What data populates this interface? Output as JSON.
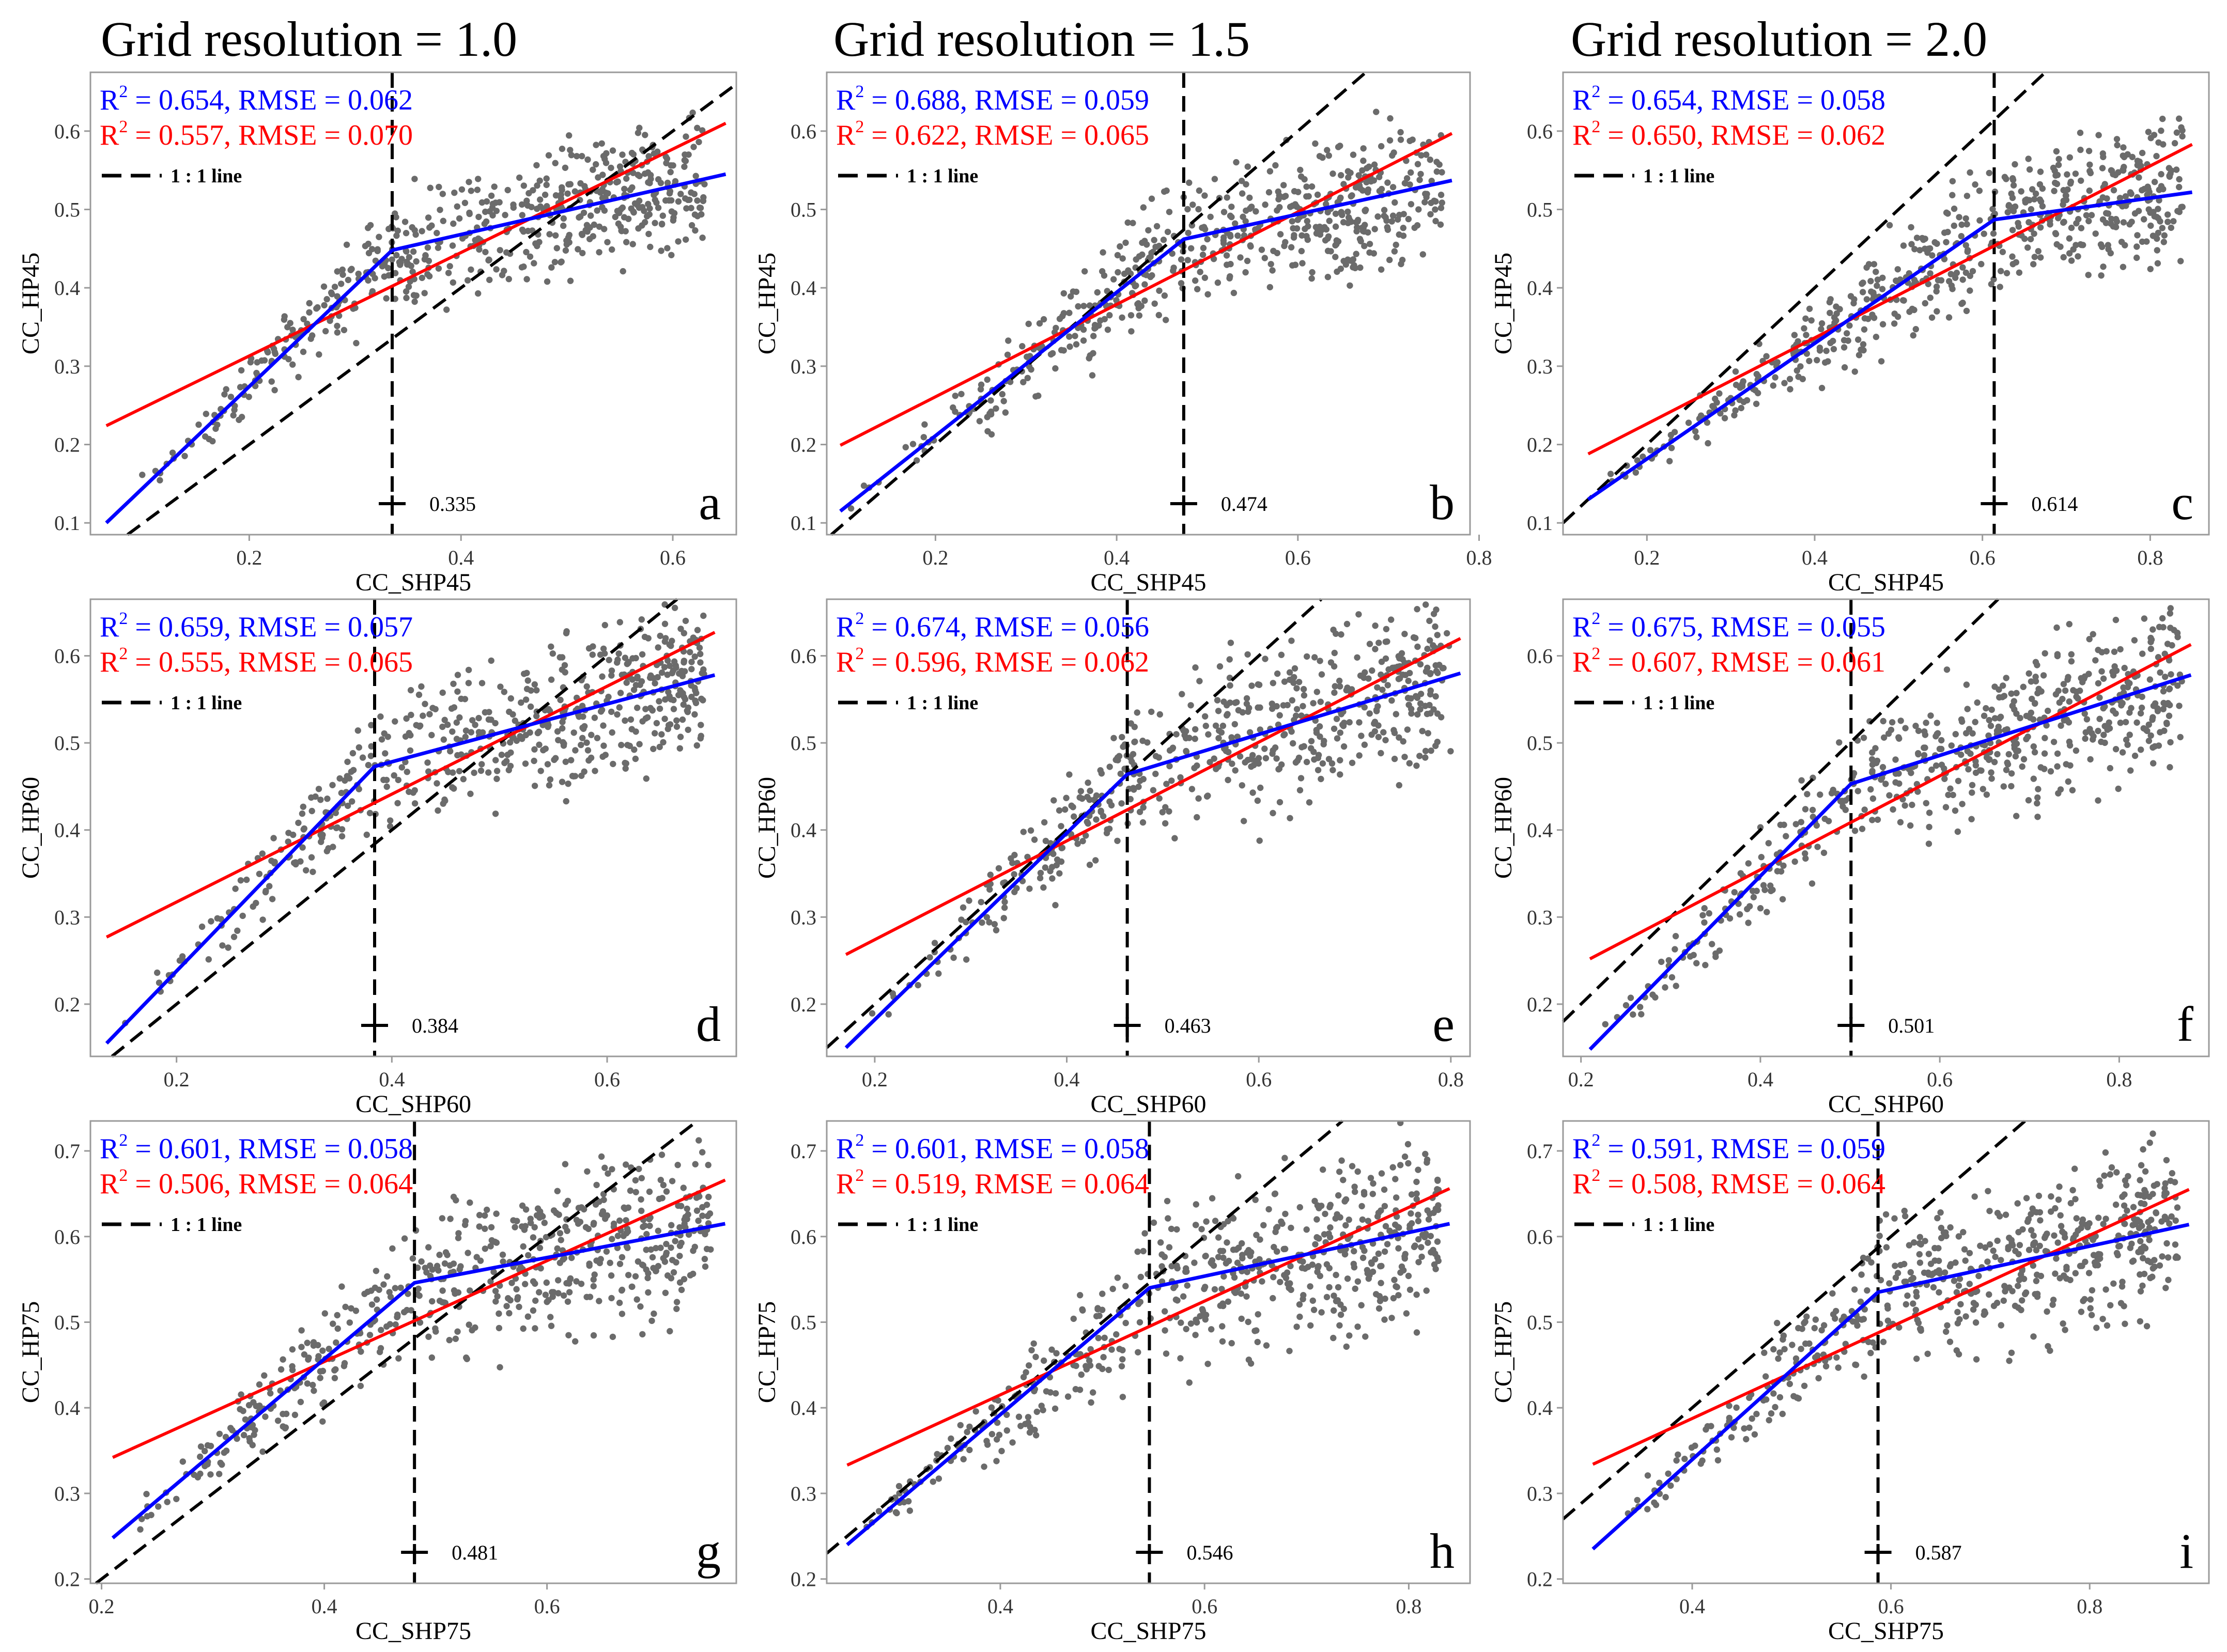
{
  "column_titles": [
    "Grid resolution = 1.0",
    "Grid resolution = 1.5",
    "Grid resolution = 2.0"
  ],
  "legend_line_label": "1 : 1 line",
  "r2_prefix": "R",
  "r2_sup": "2",
  "colors": {
    "piecewise": "#0000ff",
    "linear": "#ff0000",
    "points": "#6b6b6b",
    "frame": "#9a9a9a",
    "reference": "#000000"
  },
  "chart_data": [
    {
      "type": "scatter",
      "panel": "a",
      "xlabel": "CC_SHP45",
      "ylabel": "CC_HP45",
      "xlim": [
        0.05,
        0.66
      ],
      "ylim": [
        0.085,
        0.675
      ],
      "xticks": [
        0.2,
        0.4,
        0.6
      ],
      "xtick_labels": [
        "0.2",
        "0.4",
        "0.6"
      ],
      "yticks": [
        0.1,
        0.2,
        0.3,
        0.4,
        0.5,
        0.6
      ],
      "ytick_labels": [
        "0.1",
        "0.2",
        "0.3",
        "0.4",
        "0.5",
        "0.6"
      ],
      "breakpoint": 0.335,
      "breakpoint_label": "0.335",
      "piecewise_line": [
        [
          0.065,
          0.1
        ],
        [
          0.335,
          0.448
        ],
        [
          0.65,
          0.545
        ]
      ],
      "linear_line": [
        [
          0.065,
          0.224
        ],
        [
          0.65,
          0.61
        ]
      ],
      "piecewise_stats": "= 0.654, RMSE = 0.062",
      "linear_stats": "= 0.557, RMSE = 0.070",
      "point_model": {
        "x_min": 0.07,
        "x_max": 0.63,
        "y_low_at_x_min": 0.1,
        "y_spread_low": 0.03,
        "y_spread_high": 0.22,
        "n": 560,
        "seed": 101
      }
    },
    {
      "type": "scatter",
      "panel": "b",
      "xlabel": "CC_SHP45",
      "ylabel": "CC_HP45",
      "xlim": [
        0.08,
        0.79
      ],
      "ylim": [
        0.085,
        0.675
      ],
      "xticks": [
        0.2,
        0.4,
        0.6,
        0.8
      ],
      "xtick_labels": [
        "0.2",
        "0.4",
        "0.6",
        "0.8"
      ],
      "yticks": [
        0.1,
        0.2,
        0.3,
        0.4,
        0.5,
        0.6
      ],
      "ytick_labels": [
        "0.1",
        "0.2",
        "0.3",
        "0.4",
        "0.5",
        "0.6"
      ],
      "breakpoint": 0.474,
      "breakpoint_label": "0.474",
      "piecewise_line": [
        [
          0.095,
          0.115
        ],
        [
          0.474,
          0.462
        ],
        [
          0.77,
          0.537
        ]
      ],
      "linear_line": [
        [
          0.095,
          0.199
        ],
        [
          0.77,
          0.597
        ]
      ],
      "piecewise_stats": "= 0.688, RMSE = 0.059",
      "linear_stats": "= 0.622, RMSE = 0.065",
      "point_model": {
        "x_min": 0.1,
        "x_max": 0.76,
        "y_low_at_x_min": 0.11,
        "y_spread_low": 0.03,
        "y_spread_high": 0.23,
        "n": 560,
        "seed": 202
      }
    },
    {
      "type": "scatter",
      "panel": "c",
      "xlabel": "CC_SHP45",
      "ylabel": "CC_HP45",
      "xlim": [
        0.1,
        0.87
      ],
      "ylim": [
        0.085,
        0.675
      ],
      "xticks": [
        0.2,
        0.4,
        0.6,
        0.8
      ],
      "xtick_labels": [
        "0.2",
        "0.4",
        "0.6",
        "0.8"
      ],
      "yticks": [
        0.1,
        0.2,
        0.3,
        0.4,
        0.5,
        0.6
      ],
      "ytick_labels": [
        "0.1",
        "0.2",
        "0.3",
        "0.4",
        "0.5",
        "0.6"
      ],
      "breakpoint": 0.614,
      "breakpoint_label": "0.614",
      "piecewise_line": [
        [
          0.13,
          0.13
        ],
        [
          0.614,
          0.487
        ],
        [
          0.85,
          0.522
        ]
      ],
      "linear_line": [
        [
          0.13,
          0.188
        ],
        [
          0.85,
          0.583
        ]
      ],
      "piecewise_stats": "= 0.654, RMSE = 0.058",
      "linear_stats": "= 0.650, RMSE = 0.062",
      "point_model": {
        "x_min": 0.14,
        "x_max": 0.84,
        "y_low_at_x_min": 0.12,
        "y_spread_low": 0.03,
        "y_spread_high": 0.22,
        "n": 560,
        "seed": 303
      }
    },
    {
      "type": "scatter",
      "panel": "d",
      "xlabel": "CC_SHP60",
      "ylabel": "CC_HP60",
      "xlim": [
        0.12,
        0.72
      ],
      "ylim": [
        0.14,
        0.665
      ],
      "xticks": [
        0.2,
        0.4,
        0.6
      ],
      "xtick_labels": [
        "0.2",
        "0.4",
        "0.6"
      ],
      "yticks": [
        0.2,
        0.3,
        0.4,
        0.5,
        0.6
      ],
      "ytick_labels": [
        "0.2",
        "0.3",
        "0.4",
        "0.5",
        "0.6"
      ],
      "breakpoint": 0.384,
      "breakpoint_label": "0.384",
      "piecewise_line": [
        [
          0.135,
          0.155
        ],
        [
          0.384,
          0.473
        ],
        [
          0.7,
          0.578
        ]
      ],
      "linear_line": [
        [
          0.135,
          0.277
        ],
        [
          0.7,
          0.627
        ]
      ],
      "piecewise_stats": "= 0.659, RMSE = 0.057",
      "linear_stats": "= 0.555, RMSE = 0.065",
      "point_model": {
        "x_min": 0.14,
        "x_max": 0.69,
        "y_low_at_x_min": 0.16,
        "y_spread_low": 0.03,
        "y_spread_high": 0.24,
        "n": 560,
        "seed": 404
      }
    },
    {
      "type": "scatter",
      "panel": "e",
      "xlabel": "CC_SHP60",
      "ylabel": "CC_HP60",
      "xlim": [
        0.15,
        0.82
      ],
      "ylim": [
        0.14,
        0.665
      ],
      "xticks": [
        0.2,
        0.4,
        0.6,
        0.8
      ],
      "xtick_labels": [
        "0.2",
        "0.4",
        "0.6",
        "0.8"
      ],
      "yticks": [
        0.2,
        0.3,
        0.4,
        0.5,
        0.6
      ],
      "ytick_labels": [
        "0.2",
        "0.3",
        "0.4",
        "0.5",
        "0.6"
      ],
      "breakpoint": 0.463,
      "breakpoint_label": "0.463",
      "piecewise_line": [
        [
          0.17,
          0.15
        ],
        [
          0.463,
          0.464
        ],
        [
          0.81,
          0.58
        ]
      ],
      "linear_line": [
        [
          0.17,
          0.257
        ],
        [
          0.81,
          0.62
        ]
      ],
      "piecewise_stats": "= 0.674, RMSE = 0.056",
      "linear_stats": "= 0.596, RMSE = 0.062",
      "point_model": {
        "x_min": 0.18,
        "x_max": 0.8,
        "y_low_at_x_min": 0.17,
        "y_spread_low": 0.03,
        "y_spread_high": 0.24,
        "n": 560,
        "seed": 505
      }
    },
    {
      "type": "scatter",
      "panel": "f",
      "xlabel": "CC_SHP60",
      "ylabel": "CC_HP60",
      "xlim": [
        0.18,
        0.9
      ],
      "ylim": [
        0.14,
        0.665
      ],
      "xticks": [
        0.2,
        0.4,
        0.6,
        0.8
      ],
      "xtick_labels": [
        "0.2",
        "0.4",
        "0.6",
        "0.8"
      ],
      "yticks": [
        0.2,
        0.3,
        0.4,
        0.5,
        0.6
      ],
      "ytick_labels": [
        "0.2",
        "0.3",
        "0.4",
        "0.5",
        "0.6"
      ],
      "breakpoint": 0.501,
      "breakpoint_label": "0.501",
      "piecewise_line": [
        [
          0.21,
          0.148
        ],
        [
          0.501,
          0.453
        ],
        [
          0.88,
          0.578
        ]
      ],
      "linear_line": [
        [
          0.21,
          0.252
        ],
        [
          0.88,
          0.613
        ]
      ],
      "piecewise_stats": "= 0.675, RMSE = 0.055",
      "linear_stats": "= 0.607, RMSE = 0.061",
      "point_model": {
        "x_min": 0.22,
        "x_max": 0.87,
        "y_low_at_x_min": 0.17,
        "y_spread_low": 0.03,
        "y_spread_high": 0.24,
        "n": 560,
        "seed": 606
      }
    },
    {
      "type": "scatter",
      "panel": "g",
      "xlabel": "CC_SHP75",
      "ylabel": "CC_HP75",
      "xlim": [
        0.19,
        0.77
      ],
      "ylim": [
        0.195,
        0.735
      ],
      "xticks": [
        0.2,
        0.4,
        0.6
      ],
      "xtick_labels": [
        "0.2",
        "0.4",
        "0.6"
      ],
      "yticks": [
        0.2,
        0.3,
        0.4,
        0.5,
        0.6,
        0.7
      ],
      "ytick_labels": [
        "0.2",
        "0.3",
        "0.4",
        "0.5",
        "0.6",
        "0.7"
      ],
      "breakpoint": 0.481,
      "breakpoint_label": "0.481",
      "piecewise_line": [
        [
          0.21,
          0.248
        ],
        [
          0.481,
          0.546
        ],
        [
          0.76,
          0.615
        ]
      ],
      "linear_line": [
        [
          0.21,
          0.342
        ],
        [
          0.76,
          0.666
        ]
      ],
      "piecewise_stats": "= 0.601, RMSE = 0.058",
      "linear_stats": "= 0.506, RMSE = 0.064",
      "point_model": {
        "x_min": 0.21,
        "x_max": 0.75,
        "y_low_at_x_min": 0.24,
        "y_spread_low": 0.03,
        "y_spread_high": 0.26,
        "n": 560,
        "seed": 707
      }
    },
    {
      "type": "scatter",
      "panel": "h",
      "xlabel": "CC_SHP75",
      "ylabel": "CC_HP75",
      "xlim": [
        0.23,
        0.86
      ],
      "ylim": [
        0.195,
        0.735
      ],
      "xticks": [
        0.4,
        0.6,
        0.8
      ],
      "xtick_labels": [
        "0.4",
        "0.6",
        "0.8"
      ],
      "yticks": [
        0.2,
        0.3,
        0.4,
        0.5,
        0.6,
        0.7
      ],
      "ytick_labels": [
        "0.2",
        "0.3",
        "0.4",
        "0.5",
        "0.6",
        "0.7"
      ],
      "breakpoint": 0.546,
      "breakpoint_label": "0.546",
      "piecewise_line": [
        [
          0.25,
          0.24
        ],
        [
          0.546,
          0.54
        ],
        [
          0.84,
          0.615
        ]
      ],
      "linear_line": [
        [
          0.25,
          0.333
        ],
        [
          0.84,
          0.656
        ]
      ],
      "piecewise_stats": "= 0.601, RMSE = 0.058",
      "linear_stats": "= 0.519, RMSE = 0.064",
      "point_model": {
        "x_min": 0.26,
        "x_max": 0.83,
        "y_low_at_x_min": 0.24,
        "y_spread_low": 0.03,
        "y_spread_high": 0.26,
        "n": 560,
        "seed": 808
      }
    },
    {
      "type": "scatter",
      "panel": "i",
      "xlabel": "CC_SHP75",
      "ylabel": "CC_HP75",
      "xlim": [
        0.27,
        0.92
      ],
      "ylim": [
        0.195,
        0.735
      ],
      "xticks": [
        0.4,
        0.6,
        0.8
      ],
      "xtick_labels": [
        "0.4",
        "0.6",
        "0.8"
      ],
      "yticks": [
        0.2,
        0.3,
        0.4,
        0.5,
        0.6,
        0.7
      ],
      "ytick_labels": [
        "0.2",
        "0.3",
        "0.4",
        "0.5",
        "0.6",
        "0.7"
      ],
      "breakpoint": 0.587,
      "breakpoint_label": "0.587",
      "piecewise_line": [
        [
          0.3,
          0.235
        ],
        [
          0.587,
          0.535
        ],
        [
          0.9,
          0.614
        ]
      ],
      "linear_line": [
        [
          0.3,
          0.334
        ],
        [
          0.9,
          0.655
        ]
      ],
      "piecewise_stats": "= 0.591, RMSE = 0.059",
      "linear_stats": "= 0.508, RMSE = 0.064",
      "point_model": {
        "x_min": 0.31,
        "x_max": 0.89,
        "y_low_at_x_min": 0.24,
        "y_spread_low": 0.03,
        "y_spread_high": 0.26,
        "n": 560,
        "seed": 909
      }
    }
  ]
}
